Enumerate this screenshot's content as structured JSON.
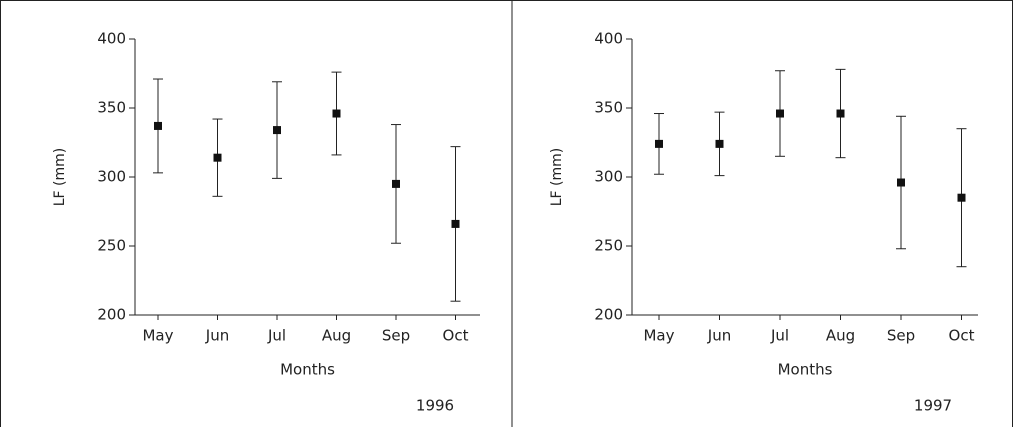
{
  "chart_data": [
    {
      "type": "errorbar",
      "y_label": "LF (mm)",
      "x_label": "Months",
      "annotation": "1996",
      "categories": [
        "May",
        "Jun",
        "Jul",
        "Aug",
        "Sep",
        "Oct"
      ],
      "series": [
        {
          "color": "#111111",
          "values": [
            337,
            314,
            334,
            346,
            295,
            266
          ],
          "errors": [
            34,
            28,
            35,
            30,
            43,
            56
          ]
        }
      ],
      "ylim": [
        200,
        400
      ],
      "yticks": [
        200,
        250,
        300,
        350,
        400
      ]
    },
    {
      "type": "errorbar",
      "y_label": "LF (mm)",
      "x_label": "Months",
      "annotation": "1997",
      "categories": [
        "May",
        "Jun",
        "Jul",
        "Aug",
        "Sep",
        "Oct"
      ],
      "series": [
        {
          "color": "#111111",
          "values": [
            324,
            324,
            346,
            346,
            296,
            285
          ],
          "errors": [
            22,
            23,
            31,
            32,
            48,
            50
          ]
        }
      ],
      "ylim": [
        200,
        400
      ],
      "yticks": [
        200,
        250,
        300,
        350,
        400
      ]
    }
  ]
}
